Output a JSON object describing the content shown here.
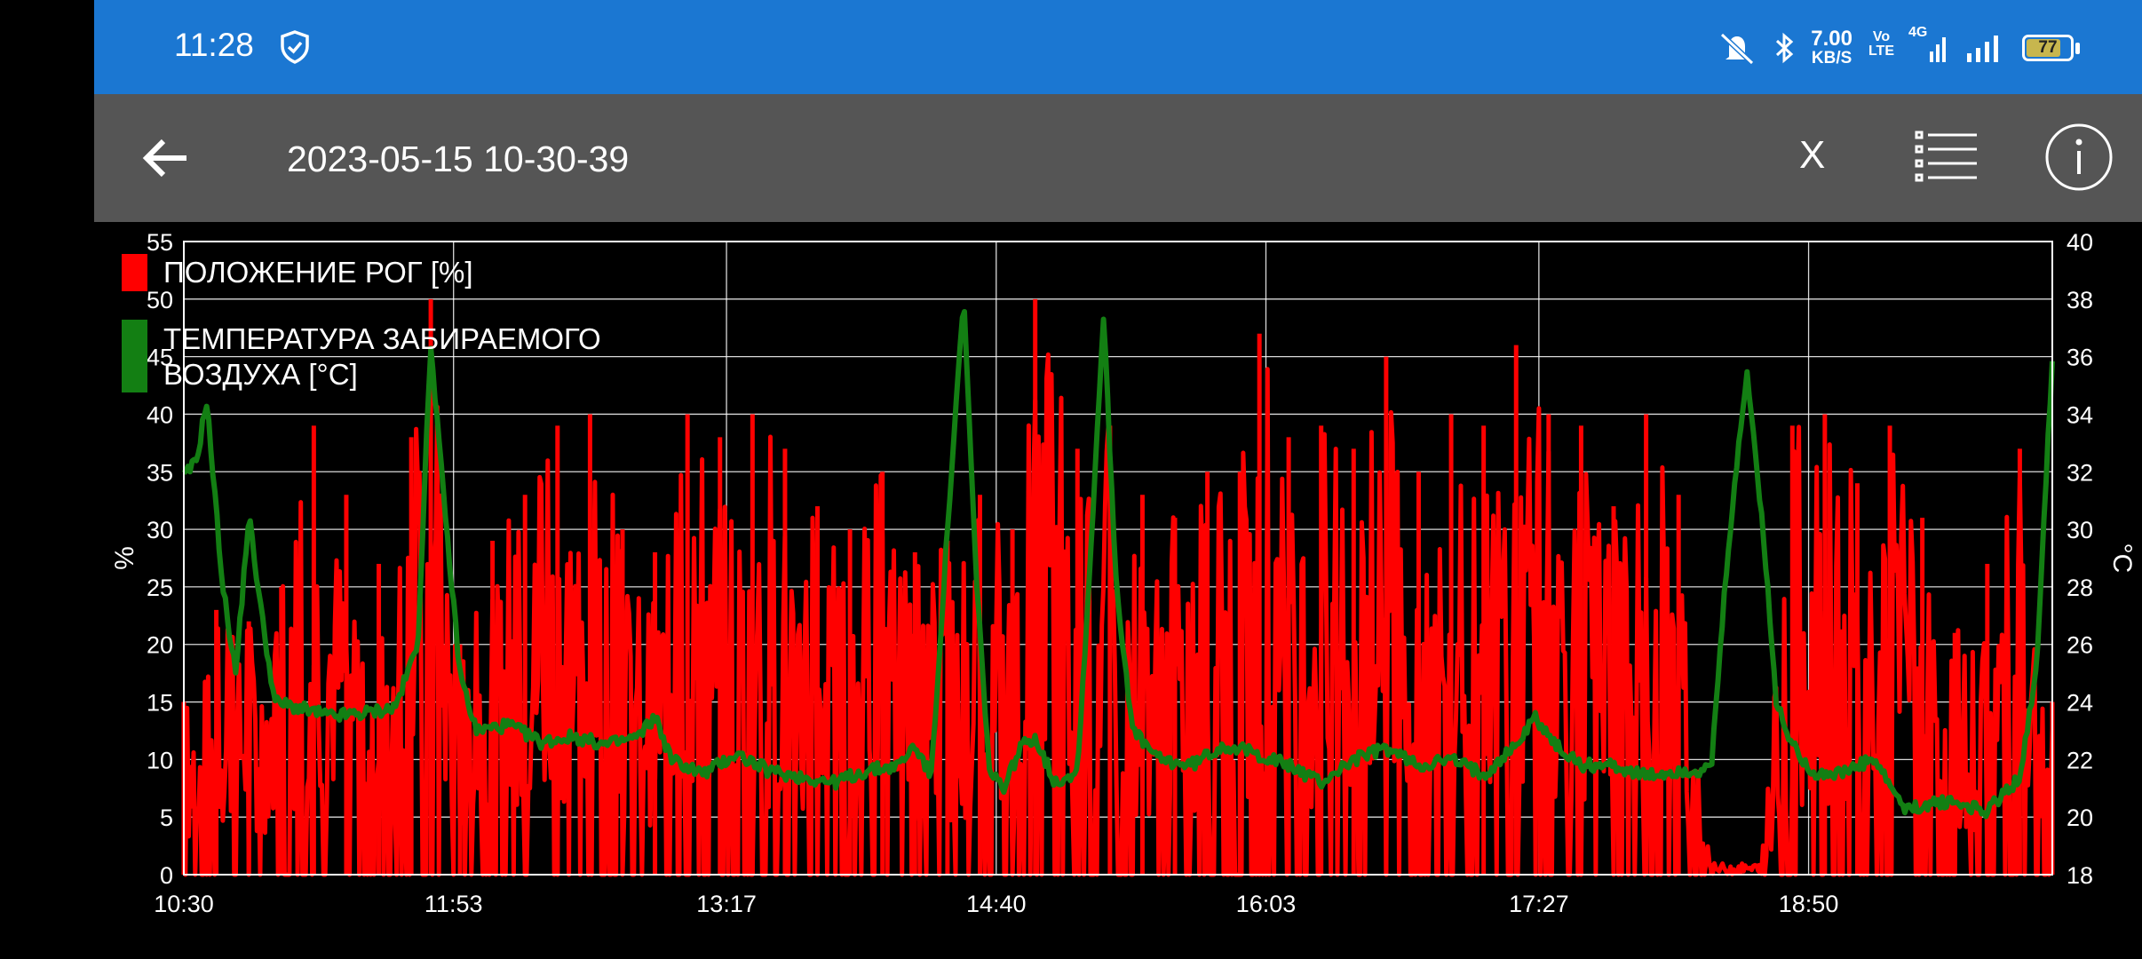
{
  "status_bar": {
    "time": "11:28",
    "net_speed_value": "7.00",
    "net_speed_unit": "KB/S",
    "volte_top": "Vo",
    "volte_bottom": "LTE",
    "network_type": "4G",
    "battery_level": "77",
    "icons": [
      "shield-check-icon",
      "mute-icon",
      "bluetooth-icon",
      "signal-icon",
      "battery-icon"
    ]
  },
  "toolbar": {
    "title": "2023-05-15 10-30-39",
    "close_label": "X",
    "icons": [
      "back-arrow-icon",
      "list-icon",
      "info-icon"
    ]
  },
  "chart_data": {
    "type": "line",
    "title": "",
    "background": "#000000",
    "grid": true,
    "legend_position": "top-left",
    "xlabel": "",
    "x_ticks": [
      "10:30",
      "11:53",
      "13:17",
      "14:40",
      "16:03",
      "17:27",
      "18:50"
    ],
    "x_start": "10:30",
    "x_end": "20:05",
    "y_left_label": "%",
    "y_left_ticks": [
      "55",
      "50",
      "45",
      "40",
      "35",
      "30",
      "25",
      "20",
      "15",
      "10",
      "5",
      "0"
    ],
    "y_left_range": [
      0,
      55
    ],
    "y_right_label": "°C",
    "y_right_ticks": [
      "40",
      "38",
      "36",
      "34",
      "32",
      "30",
      "28",
      "26",
      "24",
      "22",
      "20",
      "18"
    ],
    "y_right_range": [
      18,
      40
    ],
    "series": [
      {
        "name": "ПОЛОЖЕНИЕ РОГ [%]",
        "color": "#ff0000",
        "axis": "left",
        "peaks": [
          [
            "10:30",
            15
          ],
          [
            "10:40",
            23
          ],
          [
            "10:50",
            22
          ],
          [
            "11:00",
            25
          ],
          [
            "11:10",
            39
          ],
          [
            "11:20",
            33
          ],
          [
            "11:30",
            27
          ],
          [
            "11:40",
            38
          ],
          [
            "11:46",
            50
          ],
          [
            "11:55",
            20
          ],
          [
            "12:05",
            29
          ],
          [
            "12:15",
            33
          ],
          [
            "12:25",
            39
          ],
          [
            "12:35",
            40
          ],
          [
            "12:45",
            30
          ],
          [
            "12:55",
            28
          ],
          [
            "13:05",
            40
          ],
          [
            "13:15",
            38
          ],
          [
            "13:25",
            40
          ],
          [
            "13:35",
            37
          ],
          [
            "13:45",
            32
          ],
          [
            "13:55",
            30
          ],
          [
            "14:05",
            35
          ],
          [
            "14:15",
            28
          ],
          [
            "14:25",
            29
          ],
          [
            "14:35",
            33
          ],
          [
            "14:45",
            30
          ],
          [
            "14:52",
            50
          ],
          [
            "15:05",
            37
          ],
          [
            "15:15",
            39
          ],
          [
            "15:25",
            33
          ],
          [
            "15:35",
            31
          ],
          [
            "15:45",
            35
          ],
          [
            "15:55",
            35
          ],
          [
            "16:01",
            47
          ],
          [
            "16:10",
            38
          ],
          [
            "16:20",
            39
          ],
          [
            "16:30",
            37
          ],
          [
            "16:40",
            45
          ],
          [
            "16:50",
            35
          ],
          [
            "17:00",
            40
          ],
          [
            "17:10",
            39
          ],
          [
            "17:20",
            46
          ],
          [
            "17:30",
            40
          ],
          [
            "17:40",
            39
          ],
          [
            "17:50",
            32
          ],
          [
            "18:00",
            40
          ],
          [
            "18:10",
            33
          ],
          [
            "18:20",
            1
          ],
          [
            "18:35",
            1
          ],
          [
            "18:45",
            39
          ],
          [
            "18:55",
            40
          ],
          [
            "19:05",
            34
          ],
          [
            "19:15",
            39
          ],
          [
            "19:25",
            31
          ],
          [
            "19:35",
            21
          ],
          [
            "19:45",
            27
          ],
          [
            "19:55",
            37
          ],
          [
            "20:05",
            15
          ]
        ]
      },
      {
        "name": "ТЕМПЕРАТУРА ЗАБИРАЕМОГО ВОЗДУХА [°C]",
        "color": "#137f13",
        "axis": "right",
        "points": [
          [
            "10:30",
            31.8
          ],
          [
            "10:34",
            32.4
          ],
          [
            "10:37",
            34.5
          ],
          [
            "10:42",
            28
          ],
          [
            "10:46",
            25
          ],
          [
            "10:50",
            30.5
          ],
          [
            "10:54",
            27
          ],
          [
            "10:58",
            24
          ],
          [
            "11:05",
            23.8
          ],
          [
            "11:15",
            23.5
          ],
          [
            "11:25",
            23.6
          ],
          [
            "11:35",
            23.8
          ],
          [
            "11:42",
            26
          ],
          [
            "11:46",
            36.5
          ],
          [
            "11:50",
            31
          ],
          [
            "11:55",
            25
          ],
          [
            "12:00",
            23
          ],
          [
            "12:10",
            23.2
          ],
          [
            "12:20",
            22.6
          ],
          [
            "12:30",
            22.8
          ],
          [
            "12:40",
            22.5
          ],
          [
            "12:50",
            22.8
          ],
          [
            "12:55",
            23.5
          ],
          [
            "13:00",
            22
          ],
          [
            "13:10",
            21.5
          ],
          [
            "13:20",
            22.2
          ],
          [
            "13:30",
            21.6
          ],
          [
            "13:40",
            21.4
          ],
          [
            "13:50",
            21.2
          ],
          [
            "14:00",
            21.6
          ],
          [
            "14:10",
            21.8
          ],
          [
            "14:15",
            22.5
          ],
          [
            "14:20",
            21.4
          ],
          [
            "14:25",
            30
          ],
          [
            "14:30",
            38
          ],
          [
            "14:34",
            28
          ],
          [
            "14:38",
            21.5
          ],
          [
            "14:42",
            21
          ],
          [
            "14:48",
            22.5
          ],
          [
            "14:52",
            22.8
          ],
          [
            "14:58",
            21.2
          ],
          [
            "15:05",
            21.6
          ],
          [
            "15:09",
            29
          ],
          [
            "15:13",
            37.5
          ],
          [
            "15:17",
            28
          ],
          [
            "15:22",
            23
          ],
          [
            "15:30",
            22
          ],
          [
            "15:40",
            21.8
          ],
          [
            "15:50",
            22.5
          ],
          [
            "16:00",
            22.2
          ],
          [
            "16:10",
            21.8
          ],
          [
            "16:20",
            21.2
          ],
          [
            "16:30",
            22
          ],
          [
            "16:40",
            22.4
          ],
          [
            "16:50",
            21.8
          ],
          [
            "17:00",
            22
          ],
          [
            "17:10",
            21.5
          ],
          [
            "17:20",
            22.5
          ],
          [
            "17:26",
            23.5
          ],
          [
            "17:32",
            22.5
          ],
          [
            "17:40",
            21.8
          ],
          [
            "17:50",
            21.8
          ],
          [
            "18:00",
            21.4
          ],
          [
            "18:10",
            21.6
          ],
          [
            "18:20",
            21.6
          ],
          [
            "18:25",
            29
          ],
          [
            "18:31",
            35.5
          ],
          [
            "18:36",
            30
          ],
          [
            "18:40",
            24
          ],
          [
            "18:45",
            22.5
          ],
          [
            "18:52",
            21.5
          ],
          [
            "19:00",
            21.5
          ],
          [
            "19:10",
            22
          ],
          [
            "19:20",
            20.2
          ],
          [
            "19:28",
            20.5
          ],
          [
            "19:35",
            20.5
          ],
          [
            "19:45",
            20.2
          ],
          [
            "19:55",
            21.4
          ],
          [
            "20:00",
            25
          ],
          [
            "20:05",
            36
          ]
        ]
      }
    ]
  }
}
